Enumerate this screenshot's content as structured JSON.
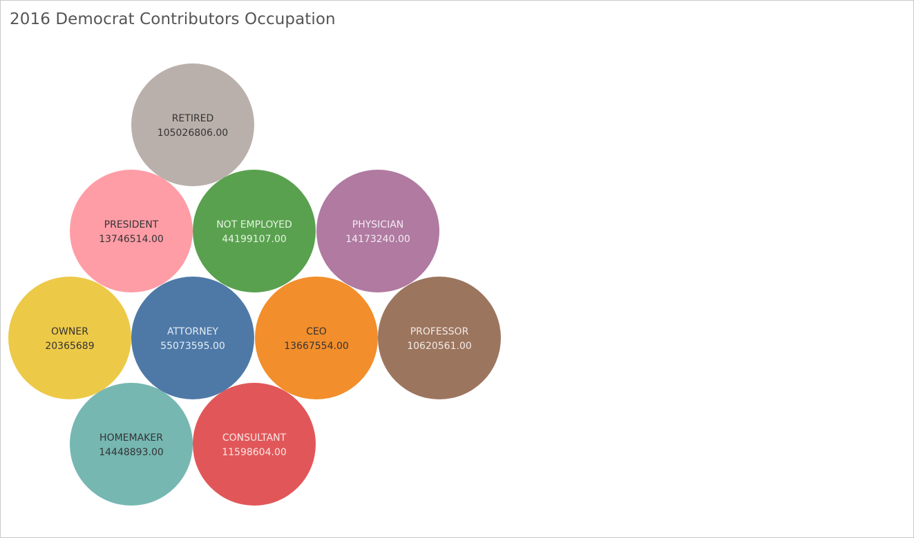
{
  "chart_data": {
    "type": "packed-bubble",
    "title": "2016 Democrat Contributors Occupation",
    "items": [
      {
        "label": "RETIRED",
        "value": "105026806.00",
        "color": "#bab0ab",
        "text_color": "#333333"
      },
      {
        "label": "PRESIDENT",
        "value": "13746514.00",
        "color": "#ff9da7",
        "text_color": "#333333"
      },
      {
        "label": "NOT EMPLOYED",
        "value": "44199107.00",
        "color": "#59a14f",
        "text_color": "#e8f5e4"
      },
      {
        "label": "PHYSICIAN",
        "value": "14173240.00",
        "color": "#b07aa1",
        "text_color": "#f4ecf2"
      },
      {
        "label": "OWNER",
        "value": "20365689",
        "color": "#edc948",
        "text_color": "#333333"
      },
      {
        "label": "ATTORNEY",
        "value": "55073595.00",
        "color": "#4e79a7",
        "text_color": "#e6edf5"
      },
      {
        "label": "CEO",
        "value": "13667554.00",
        "color": "#f28e2b",
        "text_color": "#333333"
      },
      {
        "label": "PROFESSOR",
        "value": "10620561.00",
        "color": "#9c755f",
        "text_color": "#f3ebe6"
      },
      {
        "label": "HOMEMAKER",
        "value": "14448893.00",
        "color": "#76b7b2",
        "text_color": "#333333"
      },
      {
        "label": "CONSULTANT",
        "value": "11598604.00",
        "color": "#e15759",
        "text_color": "#fbe6e6"
      }
    ]
  }
}
